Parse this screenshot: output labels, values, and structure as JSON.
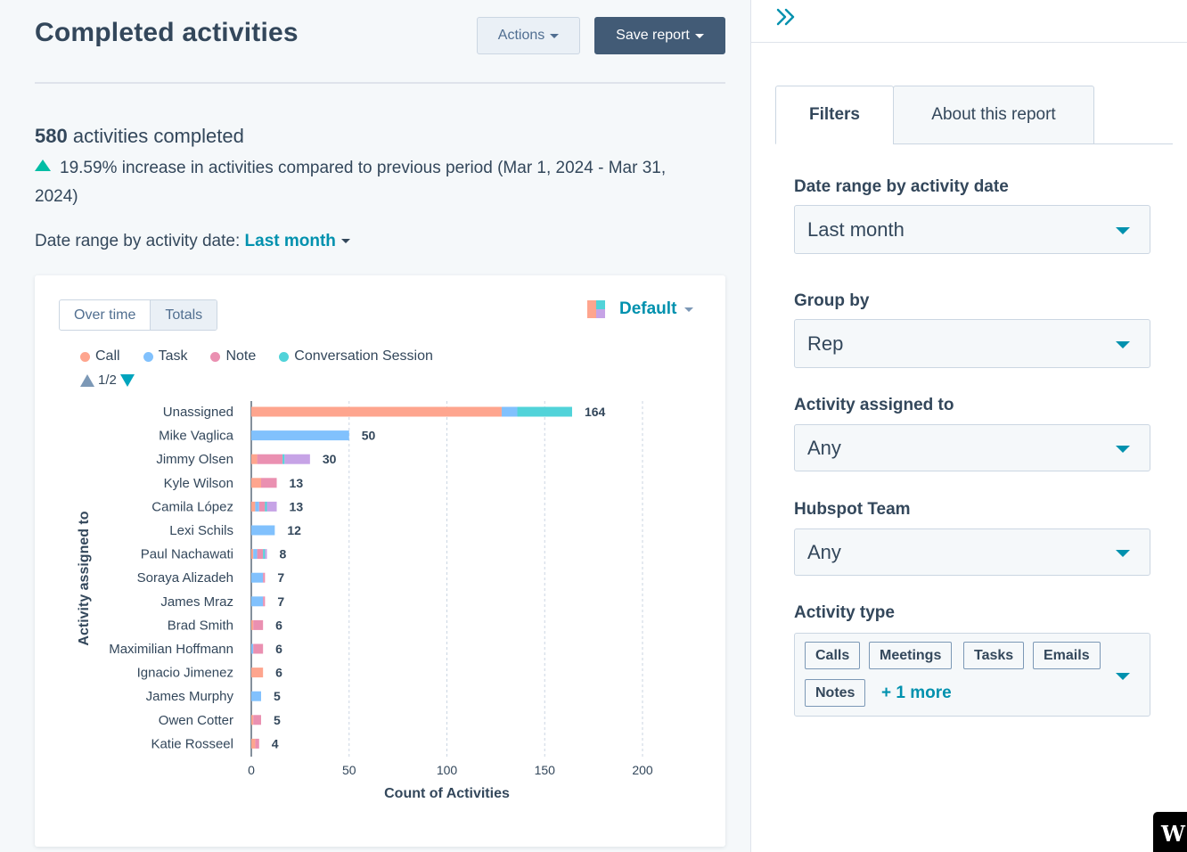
{
  "header": {
    "title": "Completed activities",
    "actions_label": "Actions",
    "save_label": "Save report"
  },
  "summary": {
    "count": "580",
    "count_suffix": "activities completed",
    "change_text": "19.59% increase in activities compared to previous period (Mar 1, 2024 - Mar 31, 2024)",
    "range_label": "Date range by activity date:",
    "range_value": "Last month"
  },
  "card": {
    "toggle_over_time": "Over time",
    "toggle_totals": "Totals",
    "palette_label": "Default",
    "legend": [
      {
        "name": "Call",
        "color": "#fea58e"
      },
      {
        "name": "Task",
        "color": "#81c1fd"
      },
      {
        "name": "Note",
        "color": "#ea90b1"
      },
      {
        "name": "Conversation Session",
        "color": "#51d3d9"
      }
    ],
    "pager": "1/2"
  },
  "chart_data": {
    "type": "bar",
    "orientation": "horizontal",
    "stacked": true,
    "xlabel": "Count of Activities",
    "ylabel": "Activity assigned to",
    "xlim": [
      0,
      200
    ],
    "xticks": [
      0,
      50,
      100,
      150,
      200
    ],
    "grid": true,
    "categories": [
      "Unassigned",
      "Mike Vaglica",
      "Jimmy Olsen",
      "Kyle Wilson",
      "Camila López",
      "Lexi Schils",
      "Paul Nachawati",
      "Soraya Alizadeh",
      "James Mraz",
      "Brad Smith",
      "Maximilian Hoffmann",
      "Ignacio Jimenez",
      "James Murphy",
      "Owen Cotter",
      "Katie Rosseel"
    ],
    "totals": [
      164,
      50,
      30,
      13,
      13,
      12,
      8,
      7,
      7,
      6,
      6,
      6,
      5,
      5,
      4
    ],
    "series": [
      {
        "name": "Call",
        "color": "#fea58e",
        "values": [
          128,
          0,
          3,
          5,
          2,
          0,
          1,
          0,
          0,
          1,
          0,
          6,
          0,
          1,
          2
        ]
      },
      {
        "name": "Task",
        "color": "#81c1fd",
        "values": [
          8,
          50,
          0,
          0,
          2,
          12,
          2,
          6,
          6,
          0,
          1,
          0,
          5,
          0,
          0
        ]
      },
      {
        "name": "Note",
        "color": "#ea90b1",
        "values": [
          0,
          0,
          13,
          8,
          3,
          0,
          3,
          1,
          1,
          5,
          5,
          0,
          0,
          4,
          2
        ]
      },
      {
        "name": "Conversation Session",
        "color": "#51d3d9",
        "values": [
          28,
          0,
          1,
          0,
          1,
          0,
          1,
          0,
          0,
          0,
          0,
          0,
          0,
          0,
          0
        ]
      },
      {
        "name": "",
        "color": "#c6a3e6",
        "values": [
          0,
          0,
          13,
          0,
          5,
          0,
          1,
          0,
          0,
          0,
          0,
          0,
          0,
          0,
          0
        ]
      }
    ]
  },
  "panel": {
    "tab_filters": "Filters",
    "tab_about": "About this report",
    "filters": [
      {
        "label": "Date range by activity date",
        "value": "Last month"
      },
      {
        "label": "Group by",
        "value": "Rep"
      },
      {
        "label": "Activity assigned to",
        "value": "Any"
      },
      {
        "label": "Hubspot Team",
        "value": "Any"
      }
    ],
    "activity_type_label": "Activity type",
    "activity_types": [
      "Calls",
      "Meetings",
      "Tasks",
      "Emails",
      "Notes"
    ],
    "more_label": "+ 1 more"
  },
  "badge": "W"
}
